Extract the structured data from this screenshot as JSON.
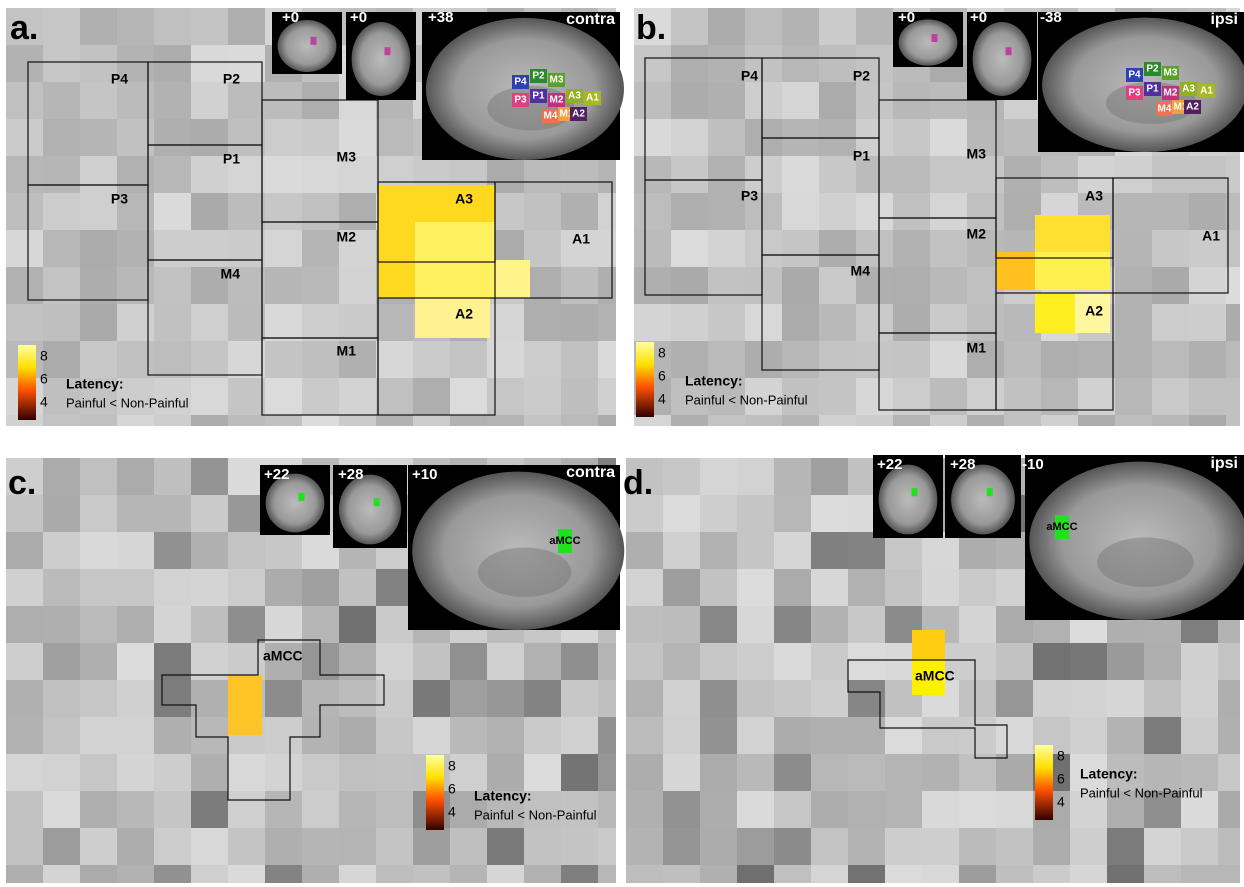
{
  "panels": [
    {
      "label": "a.",
      "coords": [
        "+0",
        "+0",
        "+38"
      ],
      "side": "contra",
      "regions": [
        "P4",
        "P2",
        "P1",
        "P3",
        "M3",
        "M2",
        "M4",
        "M1",
        "A3",
        "A1",
        "A2"
      ],
      "inset_labels": [
        "P4",
        "P2",
        "M3",
        "P3",
        "P1",
        "M2",
        "A3",
        "A1",
        "M4",
        "M1",
        "A2"
      ],
      "colorbar_ticks": [
        "8",
        "6",
        "4"
      ],
      "latency_label": "Latency:",
      "contrast": "Painful < Non-Painful"
    },
    {
      "label": "b.",
      "coords": [
        "+0",
        "+0",
        "-38"
      ],
      "side": "ipsi",
      "regions": [
        "P4",
        "P2",
        "P1",
        "P3",
        "M3",
        "M2",
        "M4",
        "M1",
        "A3",
        "A1",
        "A2"
      ],
      "inset_labels": [
        "P4",
        "P2",
        "M3",
        "P3",
        "P1",
        "M2",
        "A3",
        "A1",
        "M4",
        "M1",
        "A2"
      ],
      "colorbar_ticks": [
        "8",
        "6",
        "4"
      ],
      "latency_label": "Latency:",
      "contrast": "Painful < Non-Painful"
    },
    {
      "label": "c.",
      "coords": [
        "+22",
        "+28",
        "+10"
      ],
      "side": "contra",
      "regions": [
        "aMCC"
      ],
      "inset_labels": [
        "aMCC"
      ],
      "colorbar_ticks": [
        "8",
        "6",
        "4"
      ],
      "latency_label": "Latency:",
      "contrast": "Painful < Non-Painful"
    },
    {
      "label": "d.",
      "coords": [
        "+22",
        "+28",
        "-10"
      ],
      "side": "ipsi",
      "regions": [
        "aMCC"
      ],
      "inset_labels": [
        "aMCC"
      ],
      "colorbar_ticks": [
        "8",
        "6",
        "4"
      ],
      "latency_label": "Latency:",
      "contrast": "Painful < Non-Painful"
    }
  ]
}
